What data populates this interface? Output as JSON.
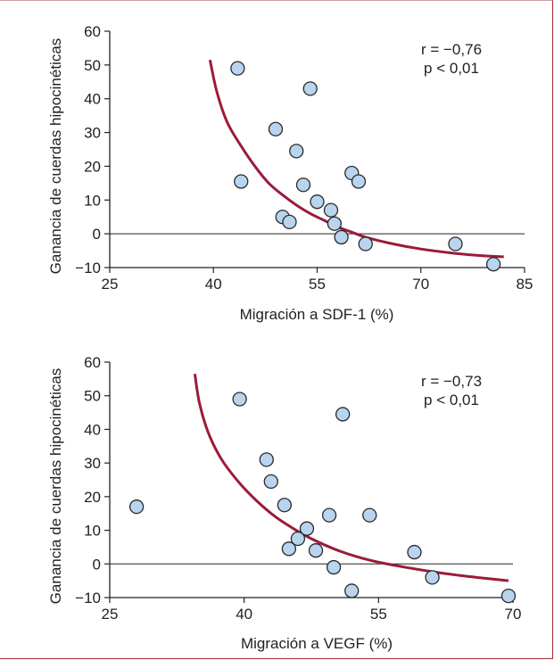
{
  "colors": {
    "point_fill": "#b8d4ee",
    "point_stroke": "#2a2a2a",
    "curve": "#9b1b3a",
    "frame": "#a32b2b",
    "axis": "#222222"
  },
  "chart_data": [
    {
      "type": "scatter",
      "title": "",
      "xlabel": "Migración a SDF-1 (%)",
      "ylabel": "Ganancia de cuerdas hipocinéticas",
      "xlim": [
        25,
        85
      ],
      "ylim": [
        -10,
        60
      ],
      "xticks": [
        25,
        40,
        55,
        70,
        85
      ],
      "yticks": [
        -10,
        0,
        10,
        20,
        30,
        40,
        50,
        60
      ],
      "zero_line": true,
      "grid": false,
      "stats": {
        "r": "r = −0,76",
        "p": "p < 0,01"
      },
      "points": [
        {
          "x": 43.5,
          "y": 49
        },
        {
          "x": 54,
          "y": 43
        },
        {
          "x": 49,
          "y": 31
        },
        {
          "x": 52,
          "y": 24.5
        },
        {
          "x": 44,
          "y": 15.5
        },
        {
          "x": 53,
          "y": 14.5
        },
        {
          "x": 60,
          "y": 18
        },
        {
          "x": 61,
          "y": 15.5
        },
        {
          "x": 55,
          "y": 9.5
        },
        {
          "x": 57,
          "y": 7
        },
        {
          "x": 50,
          "y": 5
        },
        {
          "x": 51,
          "y": 3.5
        },
        {
          "x": 57.5,
          "y": 3
        },
        {
          "x": 58.5,
          "y": -1
        },
        {
          "x": 62,
          "y": -3
        },
        {
          "x": 75,
          "y": -3
        },
        {
          "x": 80.5,
          "y": -9
        }
      ],
      "curve": {
        "points": [
          [
            39.5,
            51.5
          ],
          [
            40.5,
            42
          ],
          [
            42,
            33
          ],
          [
            44,
            26
          ],
          [
            46,
            20
          ],
          [
            48,
            15
          ],
          [
            50,
            11.5
          ],
          [
            52,
            8.5
          ],
          [
            54,
            6
          ],
          [
            56,
            4
          ],
          [
            58,
            2
          ],
          [
            60,
            0.5
          ],
          [
            62,
            -1
          ],
          [
            66,
            -3
          ],
          [
            70,
            -4.5
          ],
          [
            75,
            -5.8
          ],
          [
            79,
            -6.5
          ],
          [
            82,
            -6.8
          ]
        ]
      }
    },
    {
      "type": "scatter",
      "title": "",
      "xlabel": "Migración a VEGF (%)",
      "ylabel": "Ganancia de cuerdas hipocinéticas",
      "xlim": [
        25,
        70
      ],
      "ylim": [
        -10,
        60
      ],
      "xticks": [
        25,
        40,
        55,
        70
      ],
      "yticks": [
        -10,
        0,
        10,
        20,
        30,
        40,
        50,
        60
      ],
      "zero_line": true,
      "grid": false,
      "stats": {
        "r": "r = −0,73",
        "p": "p < 0,01"
      },
      "points": [
        {
          "x": 28,
          "y": 17
        },
        {
          "x": 39.5,
          "y": 49
        },
        {
          "x": 51,
          "y": 44.5
        },
        {
          "x": 42.5,
          "y": 31
        },
        {
          "x": 43,
          "y": 24.5
        },
        {
          "x": 44.5,
          "y": 17.5
        },
        {
          "x": 49.5,
          "y": 14.5
        },
        {
          "x": 54,
          "y": 14.5
        },
        {
          "x": 47,
          "y": 10.5
        },
        {
          "x": 46,
          "y": 7.5
        },
        {
          "x": 45,
          "y": 4.5
        },
        {
          "x": 48,
          "y": 4
        },
        {
          "x": 59,
          "y": 3.5
        },
        {
          "x": 50,
          "y": -1
        },
        {
          "x": 52,
          "y": -8
        },
        {
          "x": 61,
          "y": -4
        },
        {
          "x": 69.5,
          "y": -9.5
        }
      ],
      "curve": {
        "points": [
          [
            34.5,
            56.5
          ],
          [
            35,
            48
          ],
          [
            36,
            39
          ],
          [
            37.5,
            31
          ],
          [
            39.5,
            24
          ],
          [
            41.5,
            18.5
          ],
          [
            43.5,
            14
          ],
          [
            45.5,
            10.5
          ],
          [
            47.5,
            7.5
          ],
          [
            50,
            4.5
          ],
          [
            52.5,
            2.2
          ],
          [
            55,
            0.5
          ],
          [
            58,
            -1
          ],
          [
            61,
            -2.3
          ],
          [
            64,
            -3.4
          ],
          [
            67,
            -4.3
          ],
          [
            69.5,
            -5
          ]
        ]
      }
    }
  ]
}
